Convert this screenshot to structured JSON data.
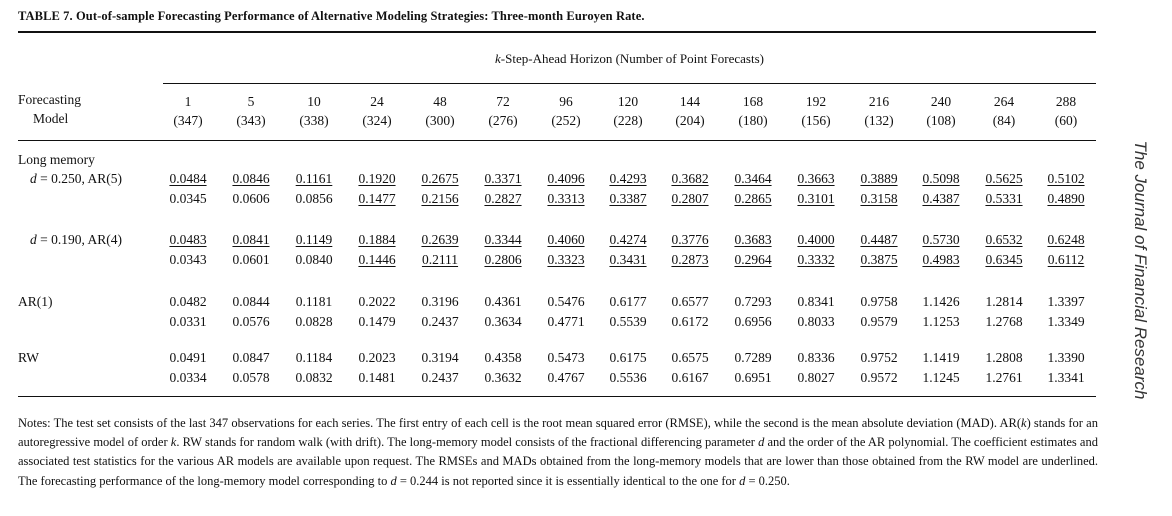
{
  "title": "TABLE 7. Out-of-sample Forecasting Performance of Alternative Modeling Strategies: Three-month Euroyen Rate.",
  "horizon_header_k": "k",
  "horizon_header_rest": "-Step-Ahead Horizon (Number of Point Forecasts)",
  "stub_header": [
    "Forecasting",
    "Model"
  ],
  "columns": [
    {
      "h": "1",
      "n": "(347)"
    },
    {
      "h": "5",
      "n": "(343)"
    },
    {
      "h": "10",
      "n": "(338)"
    },
    {
      "h": "24",
      "n": "(324)"
    },
    {
      "h": "48",
      "n": "(300)"
    },
    {
      "h": "72",
      "n": "(276)"
    },
    {
      "h": "96",
      "n": "(252)"
    },
    {
      "h": "120",
      "n": "(228)"
    },
    {
      "h": "144",
      "n": "(204)"
    },
    {
      "h": "168",
      "n": "(180)"
    },
    {
      "h": "192",
      "n": "(156)"
    },
    {
      "h": "216",
      "n": "(132)"
    },
    {
      "h": "240",
      "n": "(108)"
    },
    {
      "h": "264",
      "n": "(84)"
    },
    {
      "h": "288",
      "n": "(60)"
    }
  ],
  "group_label": "Long memory",
  "rows": [
    {
      "label": "d = 0.250, AR(5)",
      "rmse": [
        "0.0484",
        "0.0846",
        "0.1161",
        "0.1920",
        "0.2675",
        "0.3371",
        "0.4096",
        "0.4293",
        "0.3682",
        "0.3464",
        "0.3663",
        "0.3889",
        "0.5098",
        "0.5625",
        "0.5102"
      ],
      "rmse_u": [
        1,
        1,
        1,
        1,
        1,
        1,
        1,
        1,
        1,
        1,
        1,
        1,
        1,
        1,
        1
      ],
      "mad": [
        "0.0345",
        "0.0606",
        "0.0856",
        "0.1477",
        "0.2156",
        "0.2827",
        "0.3313",
        "0.3387",
        "0.2807",
        "0.2865",
        "0.3101",
        "0.3158",
        "0.4387",
        "0.5331",
        "0.4890"
      ],
      "mad_u": [
        0,
        0,
        0,
        1,
        1,
        1,
        1,
        1,
        1,
        1,
        1,
        1,
        1,
        1,
        1
      ]
    },
    {
      "label": "d = 0.190, AR(4)",
      "rmse": [
        "0.0483",
        "0.0841",
        "0.1149",
        "0.1884",
        "0.2639",
        "0.3344",
        "0.4060",
        "0.4274",
        "0.3776",
        "0.3683",
        "0.4000",
        "0.4487",
        "0.5730",
        "0.6532",
        "0.6248"
      ],
      "rmse_u": [
        1,
        1,
        1,
        1,
        1,
        1,
        1,
        1,
        1,
        1,
        1,
        1,
        1,
        1,
        1
      ],
      "mad": [
        "0.0343",
        "0.0601",
        "0.0840",
        "0.1446",
        "0.2111",
        "0.2806",
        "0.3323",
        "0.3431",
        "0.2873",
        "0.2964",
        "0.3332",
        "0.3875",
        "0.4983",
        "0.6345",
        "0.6112"
      ],
      "mad_u": [
        0,
        0,
        0,
        1,
        1,
        1,
        1,
        1,
        1,
        1,
        1,
        1,
        1,
        1,
        1
      ]
    },
    {
      "label": "AR(1)",
      "rmse": [
        "0.0482",
        "0.0844",
        "0.1181",
        "0.2022",
        "0.3196",
        "0.4361",
        "0.5476",
        "0.6177",
        "0.6577",
        "0.7293",
        "0.8341",
        "0.9758",
        "1.1426",
        "1.2814",
        "1.3397"
      ],
      "rmse_u": [
        0,
        0,
        0,
        0,
        0,
        0,
        0,
        0,
        0,
        0,
        0,
        0,
        0,
        0,
        0
      ],
      "mad": [
        "0.0331",
        "0.0576",
        "0.0828",
        "0.1479",
        "0.2437",
        "0.3634",
        "0.4771",
        "0.5539",
        "0.6172",
        "0.6956",
        "0.8033",
        "0.9579",
        "1.1253",
        "1.2768",
        "1.3349"
      ],
      "mad_u": [
        0,
        0,
        0,
        0,
        0,
        0,
        0,
        0,
        0,
        0,
        0,
        0,
        0,
        0,
        0
      ]
    },
    {
      "label": "RW",
      "rmse": [
        "0.0491",
        "0.0847",
        "0.1184",
        "0.2023",
        "0.3194",
        "0.4358",
        "0.5473",
        "0.6175",
        "0.6575",
        "0.7289",
        "0.8336",
        "0.9752",
        "1.1419",
        "1.2808",
        "1.3390"
      ],
      "rmse_u": [
        0,
        0,
        0,
        0,
        0,
        0,
        0,
        0,
        0,
        0,
        0,
        0,
        0,
        0,
        0
      ],
      "mad": [
        "0.0334",
        "0.0578",
        "0.0832",
        "0.1481",
        "0.2437",
        "0.3632",
        "0.4767",
        "0.5536",
        "0.6167",
        "0.6951",
        "0.8027",
        "0.9572",
        "1.1245",
        "1.2761",
        "1.3341"
      ],
      "mad_u": [
        0,
        0,
        0,
        0,
        0,
        0,
        0,
        0,
        0,
        0,
        0,
        0,
        0,
        0,
        0
      ]
    }
  ],
  "notes": "Notes: The test set consists of the last 347 observations for each series. The first entry of each cell is the root mean squared error (RMSE), while the second is the mean absolute deviation (MAD). AR(k) stands for an autoregressive model of order k. RW stands for random walk (with drift). The long-memory model consists of the fractional differencing parameter d and the order of the AR polynomial. The coefficient estimates and associated test statistics for the various AR models are available upon request. The RMSEs and MADs obtained from the long-memory models that are lower than those obtained from the RW model are underlined. The forecasting performance of the long-memory model corresponding to d = 0.244 is not reported since it is essentially identical to the one for d = 0.250.",
  "journal_name": "The Journal of Financial Research"
}
